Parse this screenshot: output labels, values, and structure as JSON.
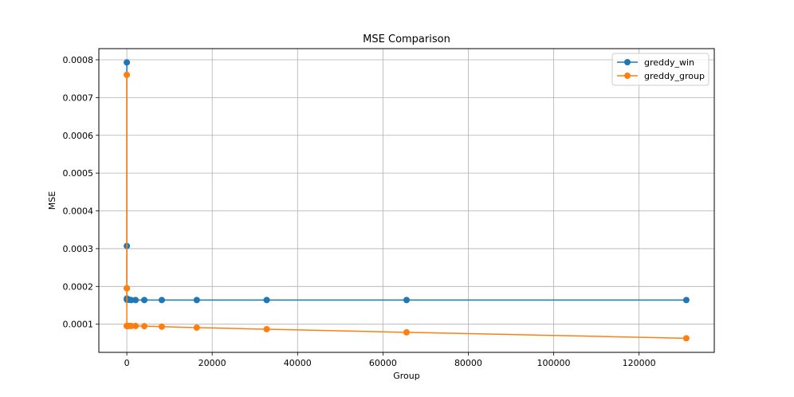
{
  "chart_data": {
    "type": "line",
    "title": "MSE Comparison",
    "xlabel": "Group",
    "ylabel": "MSE",
    "xlim": [
      -6554,
      137626
    ],
    "ylim": [
      2.55e-05,
      0.0008295
    ],
    "xticks": [
      0,
      20000,
      40000,
      60000,
      80000,
      100000,
      120000
    ],
    "xtick_labels": [
      "0",
      "20000",
      "40000",
      "60000",
      "80000",
      "100000",
      "120000"
    ],
    "yticks": [
      0.0001,
      0.0002,
      0.0003,
      0.0004,
      0.0005,
      0.0006,
      0.0007,
      0.0008
    ],
    "ytick_labels": [
      "0.0001",
      "0.0002",
      "0.0003",
      "0.0004",
      "0.0005",
      "0.0006",
      "0.0007",
      "0.0008"
    ],
    "grid": true,
    "legend_position": "top-right",
    "x": [
      1,
      2,
      4,
      8,
      16,
      32,
      64,
      128,
      256,
      512,
      1024,
      2048,
      4096,
      8192,
      16384,
      32768,
      65536,
      131072
    ],
    "series": [
      {
        "name": "greddy_win",
        "color": "#1f77b4",
        "values": [
          0.000793,
          0.000307,
          0.000195,
          0.000168,
          0.000166,
          0.000165,
          0.000165,
          0.000165,
          0.000165,
          0.000165,
          0.000164,
          0.000164,
          0.000164,
          0.000164,
          0.000164,
          0.000164,
          0.000164,
          0.000164
        ]
      },
      {
        "name": "greddy_group",
        "color": "#ff7f0e",
        "values": [
          0.00076,
          0.000195,
          9.55e-05,
          9.55e-05,
          9.55e-05,
          9.55e-05,
          9.55e-05,
          9.55e-05,
          9.55e-05,
          9.55e-05,
          9.54e-05,
          9.53e-05,
          9.48e-05,
          9.35e-05,
          9.1e-05,
          8.68e-05,
          7.85e-05,
          6.28e-05
        ]
      }
    ]
  }
}
